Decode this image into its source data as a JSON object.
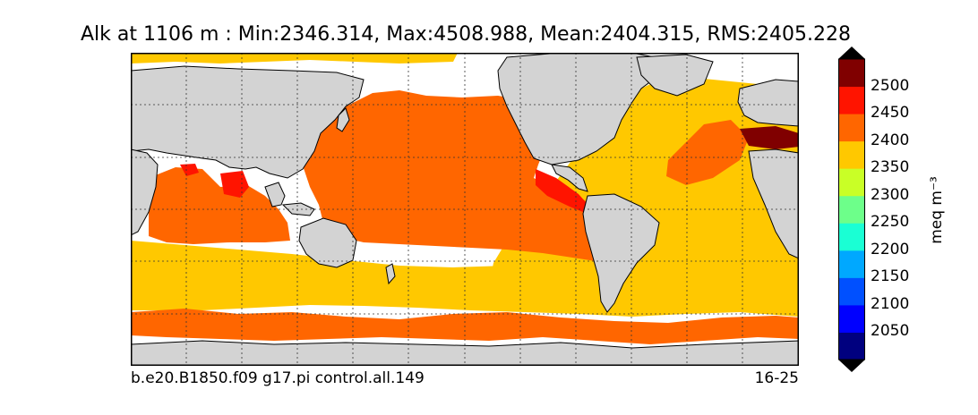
{
  "title": "Alk at 1106 m : Min:2346.314, Max:4508.988, Mean:2404.315, RMS:2405.228",
  "map": {
    "projection": "cylindrical equidistant",
    "variable": "Alk",
    "depth": "1106 m",
    "grid_lines": "dotted",
    "legend_placement": "right",
    "land_color": "#d3d3d3",
    "no_data_color": "#ffffff",
    "regions": [
      {
        "name": "pacific-orange",
        "value_band": "2400-2450",
        "color": "#ff6600"
      },
      {
        "name": "atlantic-yellow",
        "value_band": "2350-2400",
        "color": "#ffc800"
      },
      {
        "name": "southern-ocean-orange",
        "value_band": "2400-2450",
        "color": "#ff6600"
      },
      {
        "name": "indian-ocean-orange",
        "value_band": "2400-2450",
        "color": "#ff6600"
      },
      {
        "name": "eastern-pacific-red",
        "value_band": "2450-2500",
        "color": "#ff1400"
      },
      {
        "name": "bay-of-bengal-red",
        "value_band": "2450-2500",
        "color": "#ff1400"
      },
      {
        "name": "mediterranean-darkred",
        "value_band": ">2500",
        "color": "#800000"
      }
    ]
  },
  "footer": {
    "left": "b.e20.B1850.f09 g17.pi control.all.149",
    "right": "16-25"
  },
  "colorbar": {
    "label": "meq m⁻³",
    "ticks": [
      "2050",
      "2100",
      "2150",
      "2200",
      "2250",
      "2300",
      "2350",
      "2400",
      "2450",
      "2500"
    ],
    "bins": [
      {
        "color": "#00007f"
      },
      {
        "color": "#0000ff"
      },
      {
        "color": "#0050ff"
      },
      {
        "color": "#00a8ff"
      },
      {
        "color": "#1affd4"
      },
      {
        "color": "#6dff8a"
      },
      {
        "color": "#c9ff26"
      },
      {
        "color": "#ffc800"
      },
      {
        "color": "#ff6600"
      },
      {
        "color": "#ff1400"
      },
      {
        "color": "#800000"
      }
    ],
    "extend": "both",
    "under_color": "#000000",
    "over_color": "#000000"
  }
}
